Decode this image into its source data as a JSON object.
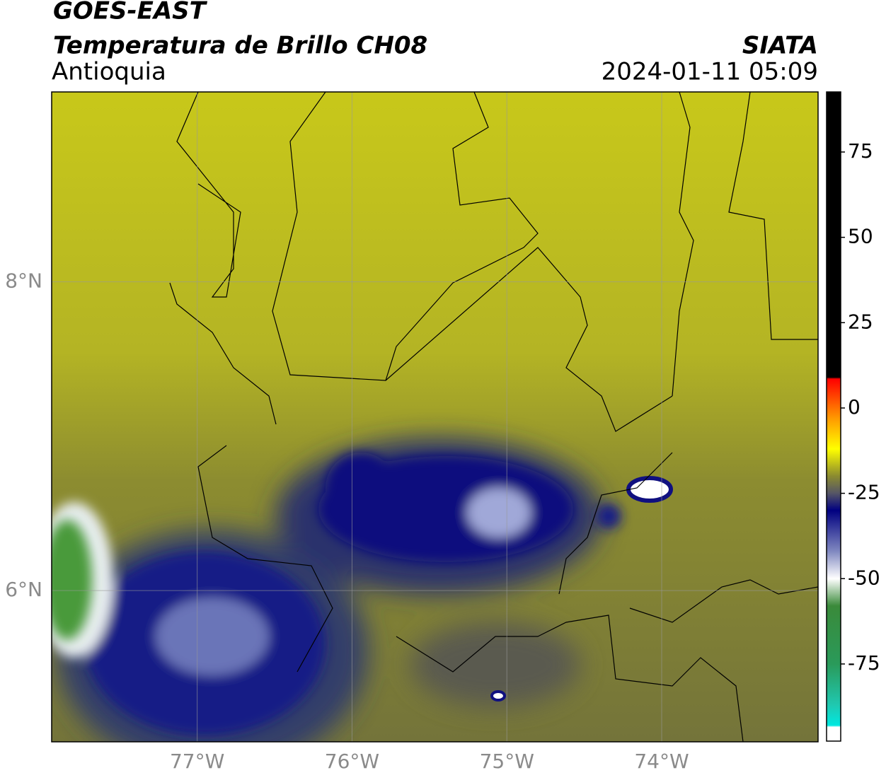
{
  "header": {
    "title": "GOES-EAST",
    "subtitle": "Temperatura de Brillo CH08",
    "region": "Antioquia",
    "agency": "SIATA",
    "datetime": "2024-01-11 05:09"
  },
  "map": {
    "lonlim": [
      -77.94,
      -72.99
    ],
    "latlim": [
      5.02,
      9.23
    ],
    "lon_ticks": [
      {
        "value": -77,
        "label": "77°W"
      },
      {
        "value": -76,
        "label": "76°W"
      },
      {
        "value": -75,
        "label": "75°W"
      },
      {
        "value": -74,
        "label": "74°W"
      }
    ],
    "lat_ticks": [
      {
        "value": 8,
        "label": "8°N"
      },
      {
        "value": 6,
        "label": "6°N"
      }
    ],
    "grid": true
  },
  "colorbar": {
    "lim": [
      -97.6,
      92.6
    ],
    "ticks": [
      75,
      50,
      25,
      0,
      -25,
      -50,
      -75
    ],
    "stops": [
      {
        "value": 92.6,
        "color": "#000000"
      },
      {
        "value": 9,
        "color": "#000000"
      },
      {
        "value": 8.5,
        "color": "#ff0000"
      },
      {
        "value": -3,
        "color": "#ff9900"
      },
      {
        "value": -12,
        "color": "#ffff00"
      },
      {
        "value": -20,
        "color": "#8a8a30"
      },
      {
        "value": -25,
        "color": "#555566"
      },
      {
        "value": -30,
        "color": "#000080"
      },
      {
        "value": -42,
        "color": "#8088c0"
      },
      {
        "value": -50,
        "color": "#ffffff"
      },
      {
        "value": -58,
        "color": "#3a8a3a"
      },
      {
        "value": -75,
        "color": "#2a9a5a"
      },
      {
        "value": -87,
        "color": "#20c8b0"
      },
      {
        "value": -93,
        "color": "#00e8e0"
      },
      {
        "value": -93.5,
        "color": "#ffffff"
      },
      {
        "value": -97.6,
        "color": "#ffffff"
      }
    ]
  }
}
